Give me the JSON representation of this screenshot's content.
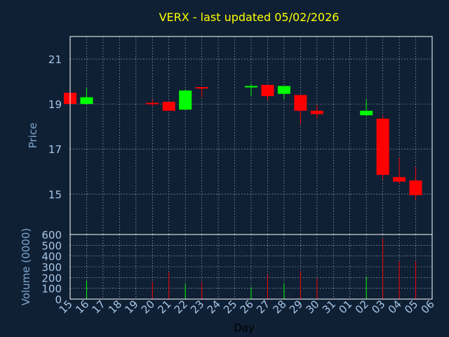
{
  "title": "VERX - last updated 05/02/2026",
  "colors": {
    "background": "#0f2035",
    "title": "#ffff00",
    "axis_text": "#7fa6cc",
    "tick_text": "#a7c6e6",
    "frame": "#ffffff",
    "grid": "#ffffff",
    "up": "#00ff00",
    "down": "#ff0000"
  },
  "chart_data": [
    {
      "type": "candlestick",
      "ylabel": "Price",
      "ylim": [
        13.2,
        22.0
      ],
      "yticks": [
        15,
        17,
        19,
        21
      ],
      "grid": true,
      "x_categories": [
        "15",
        "16",
        "17",
        "18",
        "19",
        "20",
        "21",
        "22",
        "23",
        "24",
        "25",
        "26",
        "27",
        "28",
        "29",
        "30",
        "31",
        "01",
        "02",
        "03",
        "04",
        "05",
        "06"
      ],
      "candles": [
        {
          "x": "15",
          "open": 19.5,
          "high": 19.5,
          "low": 18.9,
          "close": 19.0
        },
        {
          "x": "16",
          "open": 19.0,
          "high": 19.7,
          "low": 19.0,
          "close": 19.3
        },
        {
          "x": "20",
          "open": 19.05,
          "high": 19.2,
          "low": 18.9,
          "close": 19.0
        },
        {
          "x": "21",
          "open": 19.1,
          "high": 19.1,
          "low": 18.7,
          "close": 18.7
        },
        {
          "x": "22",
          "open": 18.75,
          "high": 19.65,
          "low": 18.75,
          "close": 19.6
        },
        {
          "x": "23",
          "open": 19.75,
          "high": 19.75,
          "low": 19.3,
          "close": 19.7
        },
        {
          "x": "26",
          "open": 19.75,
          "high": 19.9,
          "low": 19.35,
          "close": 19.8
        },
        {
          "x": "27",
          "open": 19.85,
          "high": 19.85,
          "low": 19.15,
          "close": 19.35
        },
        {
          "x": "28",
          "open": 19.45,
          "high": 19.8,
          "low": 19.2,
          "close": 19.8
        },
        {
          "x": "29",
          "open": 19.4,
          "high": 19.4,
          "low": 18.1,
          "close": 18.7
        },
        {
          "x": "30",
          "open": 18.7,
          "high": 18.95,
          "low": 18.35,
          "close": 18.55
        },
        {
          "x": "02",
          "open": 18.5,
          "high": 19.2,
          "low": 18.45,
          "close": 18.7
        },
        {
          "x": "03",
          "open": 18.35,
          "high": 18.5,
          "low": 15.65,
          "close": 15.85
        },
        {
          "x": "04",
          "open": 15.75,
          "high": 16.6,
          "low": 15.45,
          "close": 15.55
        },
        {
          "x": "05",
          "open": 15.6,
          "high": 16.2,
          "low": 14.75,
          "close": 14.95
        }
      ]
    },
    {
      "type": "bar",
      "ylabel": "Volume (0000)",
      "xlabel": "Day",
      "ylim": [
        0,
        600
      ],
      "yticks": [
        0,
        100,
        200,
        300,
        400,
        500,
        600
      ],
      "grid": true,
      "x_categories": [
        "15",
        "16",
        "17",
        "18",
        "19",
        "20",
        "21",
        "22",
        "23",
        "24",
        "25",
        "26",
        "27",
        "28",
        "29",
        "30",
        "31",
        "01",
        "02",
        "03",
        "04",
        "05",
        "06"
      ],
      "bars": [
        {
          "x": "16",
          "value": 170,
          "direction": "up"
        },
        {
          "x": "20",
          "value": 160,
          "direction": "down"
        },
        {
          "x": "21",
          "value": 250,
          "direction": "down"
        },
        {
          "x": "22",
          "value": 140,
          "direction": "up"
        },
        {
          "x": "23",
          "value": 160,
          "direction": "down"
        },
        {
          "x": "26",
          "value": 110,
          "direction": "up"
        },
        {
          "x": "27",
          "value": 230,
          "direction": "down"
        },
        {
          "x": "28",
          "value": 140,
          "direction": "up"
        },
        {
          "x": "29",
          "value": 260,
          "direction": "down"
        },
        {
          "x": "30",
          "value": 190,
          "direction": "down"
        },
        {
          "x": "02",
          "value": 210,
          "direction": "up"
        },
        {
          "x": "03",
          "value": 560,
          "direction": "down"
        },
        {
          "x": "04",
          "value": 350,
          "direction": "down"
        },
        {
          "x": "05",
          "value": 350,
          "direction": "down"
        }
      ]
    }
  ]
}
